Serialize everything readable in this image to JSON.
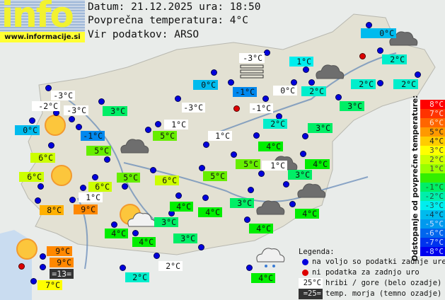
{
  "logo": {
    "word": "info",
    "url": "www.informacije.si"
  },
  "header": {
    "date_line": "Datum: 21.12.2025 ura: 18:50",
    "avg_line": "Povprečna temperatura: 4°C",
    "source_line": "Vir podatkov: ARSO"
  },
  "map_colors": {
    "9": "#ff8800",
    "8": "#ffb000",
    "7": "#ffff00",
    "6": "#ccff00",
    "5": "#66ee00",
    "4": "#00ee00",
    "3": "#00ee66",
    "2": "#00eecc",
    "1": "#00eeee",
    "0": "#00bbee",
    "-1": "#0088ee",
    "hill": "#ffffff",
    "sea": "#333333"
  },
  "stations": [
    {
      "t": "0°C",
      "v": 0
    },
    {
      "t": "-3°C",
      "v": -3,
      "kind": "hill"
    },
    {
      "t": "1°C",
      "v": 1
    },
    {
      "t": "2°C",
      "v": 2
    },
    {
      "t": "0°C",
      "v": 0
    },
    {
      "t": "-1°C",
      "v": -1
    },
    {
      "t": "0°C",
      "v": 0,
      "kind": "hill"
    },
    {
      "t": "2°C",
      "v": 2
    },
    {
      "t": "2°C",
      "v": 2
    },
    {
      "t": "2°C",
      "v": 2
    },
    {
      "t": "3°C",
      "v": 3
    },
    {
      "t": "-3°C",
      "v": -3,
      "kind": "hill"
    },
    {
      "t": "-2°C",
      "v": -2,
      "kind": "hill"
    },
    {
      "t": "-3°C",
      "v": -3,
      "kind": "hill"
    },
    {
      "t": "3°C",
      "v": 3
    },
    {
      "t": "0°C",
      "v": 0
    },
    {
      "t": "-1°C",
      "v": -1
    },
    {
      "t": "-3°C",
      "v": -3,
      "kind": "hill"
    },
    {
      "t": "-1°C",
      "v": -1,
      "kind": "hill"
    },
    {
      "t": "2°C",
      "v": 2
    },
    {
      "t": "1°C",
      "v": 1,
      "kind": "hill"
    },
    {
      "t": "5°C",
      "v": 5
    },
    {
      "t": "1°C",
      "v": 1,
      "kind": "hill"
    },
    {
      "t": "3°C",
      "v": 3
    },
    {
      "t": "4°C",
      "v": 4
    },
    {
      "t": "5°C",
      "v": 5
    },
    {
      "t": "6°C",
      "v": 6
    },
    {
      "t": "6°C",
      "v": 6
    },
    {
      "t": "5°C",
      "v": 5
    },
    {
      "t": "6°C",
      "v": 6
    },
    {
      "t": "6°C",
      "v": 6
    },
    {
      "t": "5°C",
      "v": 5
    },
    {
      "t": "5°C",
      "v": 5
    },
    {
      "t": "1°C",
      "v": 1,
      "kind": "hill"
    },
    {
      "t": "3°C",
      "v": 3
    },
    {
      "t": "4°C",
      "v": 4
    },
    {
      "t": "1°C",
      "v": 1,
      "kind": "hill"
    },
    {
      "t": "8°C",
      "v": 8
    },
    {
      "t": "9°C",
      "v": 9
    },
    {
      "t": "4°C",
      "v": 4
    },
    {
      "t": "4°C",
      "v": 4
    },
    {
      "t": "3°C",
      "v": 3
    },
    {
      "t": "4°C",
      "v": 4
    },
    {
      "t": "4°C",
      "v": 4
    },
    {
      "t": "4°C",
      "v": 4
    },
    {
      "t": "3°C",
      "v": 3
    },
    {
      "t": "3°C",
      "v": 3
    },
    {
      "t": "4°C",
      "v": 4
    },
    {
      "t": "9°C",
      "v": 9
    },
    {
      "t": "9°C",
      "v": 9
    },
    {
      "t": "=13=",
      "v": 13,
      "kind": "sea"
    },
    {
      "t": "7°C",
      "v": 7
    },
    {
      "t": "2°C",
      "v": 2
    },
    {
      "t": "2°C",
      "v": 2,
      "kind": "hill"
    },
    {
      "t": "4°C",
      "v": 4
    }
  ],
  "weather_icons": [
    "sun",
    "sun",
    "sun-cloud",
    "sun",
    "cloud",
    "cloud",
    "cloud",
    "cloud",
    "cloud",
    "cloud",
    "rain-cloud",
    "fog"
  ],
  "scale": {
    "title": "Odstopanje od povprečne temperature:",
    "rows": [
      {
        "t": "8°C",
        "bg": "#ff0000",
        "fg": "#ffdddd"
      },
      {
        "t": "7°C",
        "bg": "#ff3300",
        "fg": "#ffdddd"
      },
      {
        "t": "6°C",
        "bg": "#ff6600",
        "fg": "#ffe0cc"
      },
      {
        "t": "5°C",
        "bg": "#ff9900",
        "fg": "#222222"
      },
      {
        "t": "4°C",
        "bg": "#ffcc00",
        "fg": "#222222"
      },
      {
        "t": "3°C",
        "bg": "#ffff00",
        "fg": "#444444"
      },
      {
        "t": "2°C",
        "bg": "#ccff00",
        "fg": "#444444"
      },
      {
        "t": "1°C",
        "bg": "#99ff00",
        "fg": "#444444"
      },
      {
        "t": "",
        "bg": "#33ee00",
        "fg": "#222222"
      },
      {
        "t": "-1°C",
        "bg": "#00ee66",
        "fg": "#225522"
      },
      {
        "t": "-2°C",
        "bg": "#00eeaa",
        "fg": "#225544"
      },
      {
        "t": "-3°C",
        "bg": "#00eeee",
        "fg": "#225555"
      },
      {
        "t": "-4°C",
        "bg": "#00bbee",
        "fg": "#113344"
      },
      {
        "t": "-5°C",
        "bg": "#0099ee",
        "fg": "#ccddff"
      },
      {
        "t": "-6°C",
        "bg": "#0066ee",
        "fg": "#ccddff"
      },
      {
        "t": "-7°C",
        "bg": "#0033ee",
        "fg": "#ccddff"
      },
      {
        "t": "-8°C",
        "bg": "#0000ee",
        "fg": "#ccddff"
      }
    ]
  },
  "legend": {
    "title": "Legenda:",
    "blue_dot": "na voljo so podatki zadnje ure",
    "red_dot": "ni podatka za zadnjo uro",
    "hill_sample": "25°C",
    "hill_text": "hribi / gore (belo ozadje)",
    "sea_sample": "=25=",
    "sea_text": "temp. morja (temno ozadje)"
  }
}
